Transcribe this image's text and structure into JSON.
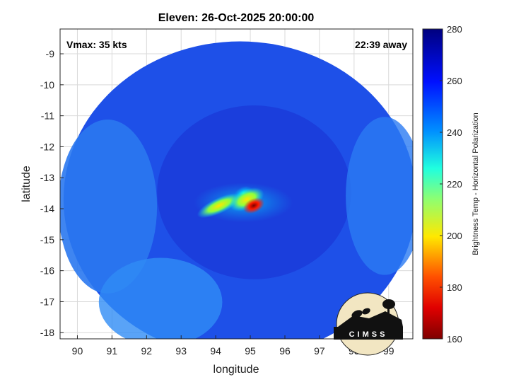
{
  "figure": {
    "title": "Eleven: 26-Oct-2025 20:00:00",
    "annotation_left": "Vmax: 35 kts",
    "annotation_right": "22:39 away",
    "logo_text": "CIMSS"
  },
  "chart_data": {
    "type": "heatmap",
    "title": "Eleven: 26-Oct-2025 20:00:00",
    "xlabel": "longitude",
    "ylabel": "latitude",
    "xlim": [
      89.5,
      99.7
    ],
    "ylim": [
      -18.2,
      -8.2
    ],
    "xticks": [
      90,
      91,
      92,
      93,
      94,
      95,
      96,
      97,
      98,
      99
    ],
    "yticks": [
      -9,
      -10,
      -11,
      -12,
      -13,
      -14,
      -15,
      -16,
      -17,
      -18
    ],
    "grid": true,
    "colorbar": {
      "label": "Brightness Temp - Horizontal Polarization",
      "range": [
        160,
        280
      ],
      "ticks": [
        280,
        260,
        240,
        220,
        200,
        180,
        160
      ],
      "colormap": [
        "#7f0000",
        "#ff0000",
        "#ffff00",
        "#00ffff",
        "#0000ff",
        "#00007f"
      ]
    },
    "swath": {
      "center_lon": 94.7,
      "center_lat": -13.7,
      "radius_deg": 5.1
    },
    "features": [
      {
        "name": "core",
        "lon": 95.1,
        "lat": -13.9,
        "value": 165
      },
      {
        "name": "inner band",
        "lon": 94.9,
        "lat": -13.7,
        "value": 200
      },
      {
        "name": "western band",
        "lon": 94.1,
        "lat": -13.9,
        "value": 215
      },
      {
        "name": "northern cell",
        "lon": 94.8,
        "lat": -13.5,
        "value": 225
      }
    ]
  }
}
